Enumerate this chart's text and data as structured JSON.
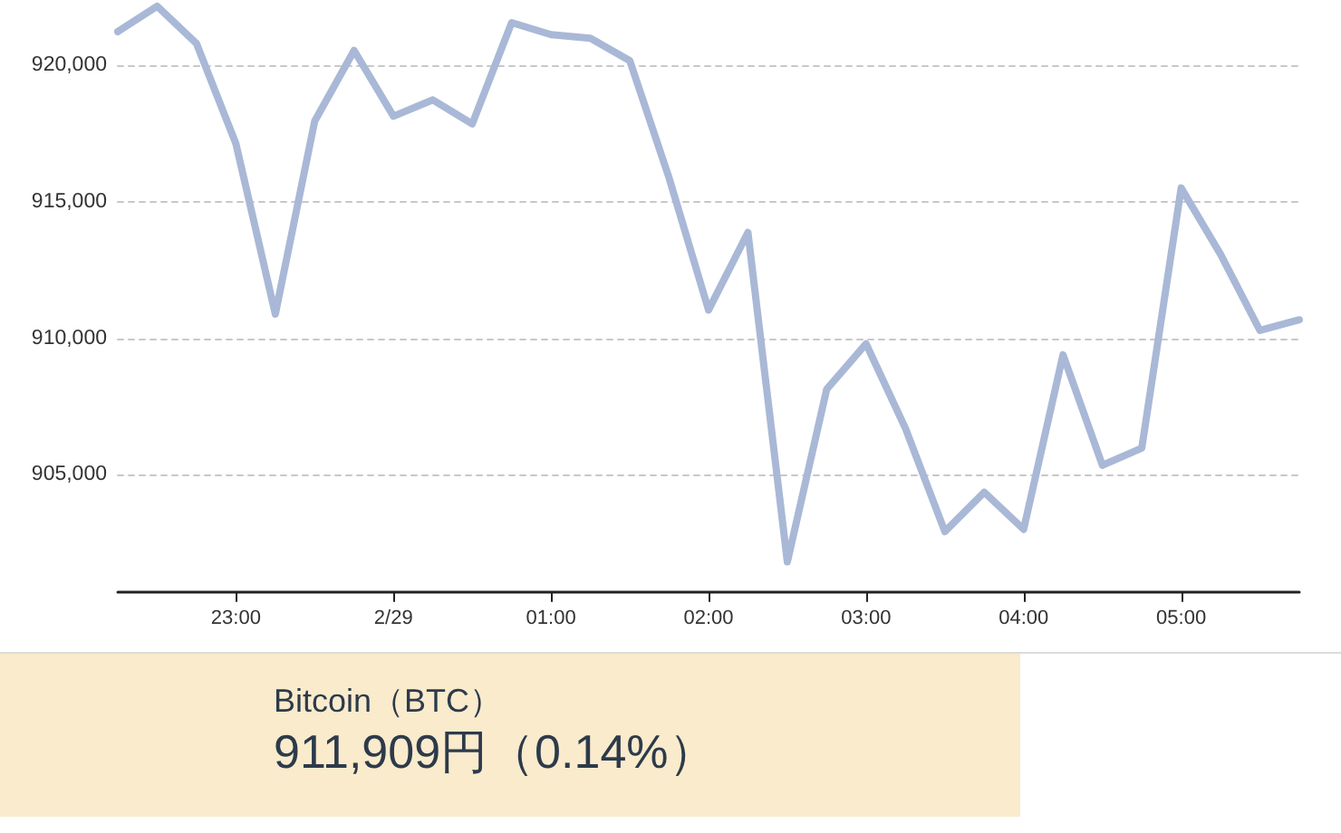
{
  "chart_data": {
    "type": "line",
    "title": "Bitcoin（BTC）",
    "subtitle": "911,909円（0.14%）",
    "categories": [
      null,
      null,
      null,
      "23:00",
      null,
      null,
      null,
      "2/29",
      null,
      null,
      null,
      "01:00",
      null,
      null,
      null,
      "02:00",
      null,
      null,
      null,
      "03:00",
      null,
      null,
      null,
      "04:00",
      null,
      null,
      null,
      "05:00",
      null,
      null,
      null
    ],
    "series": [
      {
        "color": "#a9b8d6",
        "values": [
          921240,
          922170,
          920800,
          917130,
          910890,
          917960,
          920550,
          918140,
          918740,
          917860,
          921570,
          921130,
          921000,
          920180,
          915870,
          911040,
          913880,
          901810,
          908140,
          909800,
          906700,
          902920,
          904360,
          903000,
          909400,
          905350,
          905980,
          915510,
          913080,
          910290,
          910680
        ]
      }
    ],
    "ylim": [
      900700,
      922400
    ],
    "yticks": [
      {
        "value": 905000,
        "label": "905,000"
      },
      {
        "value": 910000,
        "label": "910,000"
      },
      {
        "value": 915000,
        "label": "915,000"
      },
      {
        "value": 920000,
        "label": "920,000"
      }
    ],
    "grid": "y",
    "marker": "none",
    "line_style": "solid"
  }
}
